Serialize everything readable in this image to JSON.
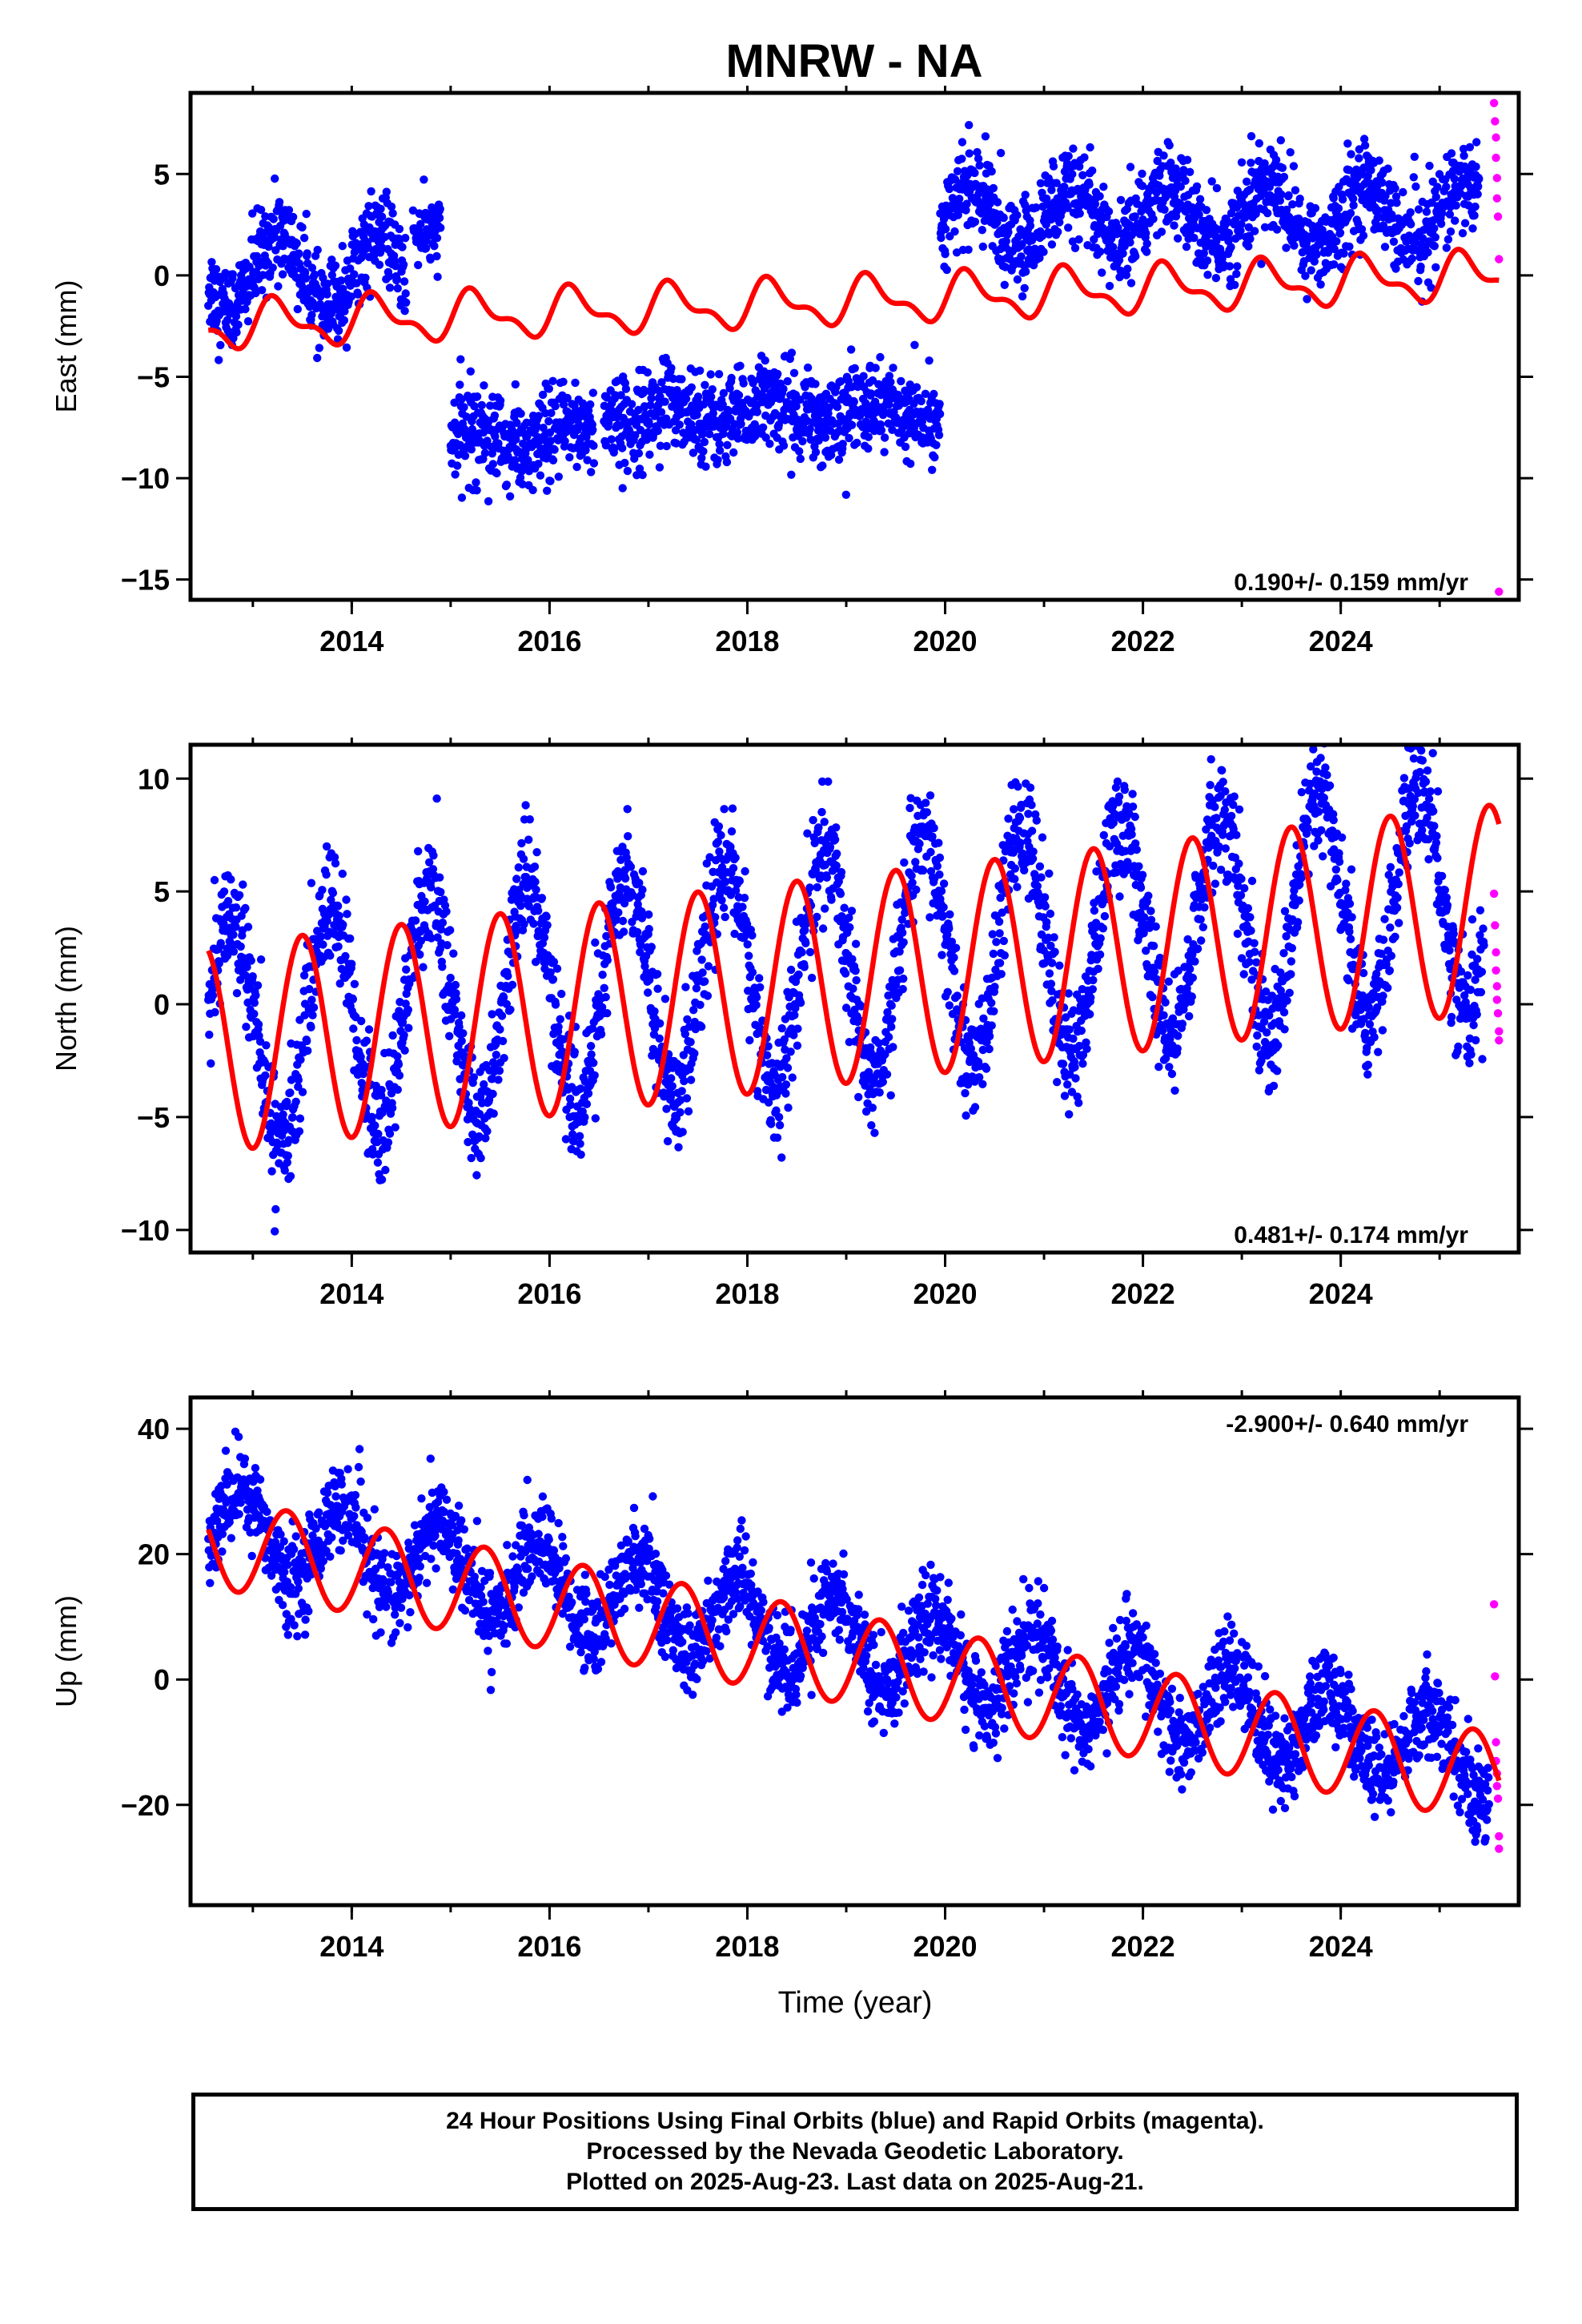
{
  "title": "MNRW - NA",
  "colors": {
    "final": "#0000ff",
    "rapid": "#ff00ff",
    "model": "#ff0000"
  },
  "xlabel": "Time (year)",
  "caption": {
    "line1": "24 Hour Positions Using Final Orbits (blue) and Rapid Orbits (magenta).",
    "line2": "Processed by the Nevada Geodetic Laboratory.",
    "line3": "Plotted on 2025-Aug-23. Last data on 2025-Aug-21."
  },
  "chart_data": [
    {
      "type": "scatter",
      "ylabel": "East (mm)",
      "rate_label": "0.190+/- 0.159 mm/yr",
      "rate_position": "bottom-right",
      "xlim": [
        2012.37,
        2025.8
      ],
      "ylim": [
        -16.0,
        9.0
      ],
      "xticks": [
        2014,
        2016,
        2018,
        2020,
        2022,
        2024
      ],
      "yticks": [
        -15,
        -10,
        -5,
        0,
        5
      ],
      "grid": false,
      "series": [
        {
          "kind": "dots",
          "color": "final",
          "segments": [
            {
              "from": 2012.55,
              "to": 2014.55,
              "c0": 0.2,
              "slope": 0.0,
              "amp": 1.8,
              "noise": 1.1
            },
            {
              "from": 2014.62,
              "to": 2014.9,
              "c0": 2.5,
              "slope": 0.0,
              "amp": 0.4,
              "noise": 0.8
            },
            {
              "from": 2015.0,
              "to": 2016.45,
              "c0": -8.2,
              "slope": 0.2,
              "amp": 0.6,
              "noise": 1.2
            },
            {
              "from": 2016.55,
              "to": 2019.95,
              "c0": -6.8,
              "slope": 0.05,
              "amp": 0.5,
              "noise": 1.1
            },
            {
              "from": 2019.95,
              "to": 2025.4,
              "c0": 2.8,
              "slope": 0.05,
              "amp": 1.4,
              "noise": 1.1
            }
          ]
        },
        {
          "kind": "dots",
          "color": "rapid",
          "points": [
            [
              2025.55,
              8.5
            ],
            [
              2025.56,
              7.6
            ],
            [
              2025.57,
              6.8
            ],
            [
              2025.57,
              5.8
            ],
            [
              2025.58,
              4.8
            ],
            [
              2025.58,
              3.8
            ],
            [
              2025.59,
              2.9
            ],
            [
              2025.6,
              0.8
            ],
            [
              2025.6,
              -15.6
            ]
          ]
        },
        {
          "kind": "model",
          "color": "model",
          "from": 2012.55,
          "to": 2025.6,
          "c0": -2.5,
          "slope": 0.19,
          "ref": 2012.55,
          "annual": [
            0.0,
            1.0
          ],
          "semi": [
            -0.2,
            0.45
          ]
        }
      ]
    },
    {
      "type": "scatter",
      "ylabel": "North (mm)",
      "rate_label": "0.481+/- 0.174 mm/yr",
      "rate_position": "bottom-right",
      "xlim": [
        2012.37,
        2025.8
      ],
      "ylim": [
        -11.0,
        11.5
      ],
      "xticks": [
        2014,
        2016,
        2018,
        2020,
        2022,
        2024
      ],
      "yticks": [
        -10,
        -5,
        0,
        5,
        10
      ],
      "grid": false,
      "series": [
        {
          "kind": "dots",
          "color": "final",
          "segments": [
            {
              "from": 2012.55,
              "to": 2025.45,
              "c0": -1.3,
              "slope": 0.48,
              "amp": 5.0,
              "noise": 1.3,
              "phase": 2.95
            }
          ]
        },
        {
          "kind": "dots",
          "color": "rapid",
          "points": [
            [
              2025.55,
              4.9
            ],
            [
              2025.56,
              3.5
            ],
            [
              2025.57,
              2.3
            ],
            [
              2025.57,
              1.5
            ],
            [
              2025.58,
              0.8
            ],
            [
              2025.58,
              0.2
            ],
            [
              2025.59,
              -0.4
            ],
            [
              2025.6,
              -1.2
            ],
            [
              2025.6,
              -1.6
            ]
          ]
        },
        {
          "kind": "model",
          "color": "model",
          "from": 2012.55,
          "to": 2025.6,
          "c0": -2.0,
          "slope": 0.48,
          "ref": 2012.55,
          "annual": [
            -4.6,
            0.0
          ],
          "semi": [
            0.0,
            0.0
          ]
        }
      ]
    },
    {
      "type": "scatter",
      "ylabel": "Up (mm)",
      "rate_label": "-2.900+/- 0.640 mm/yr",
      "rate_position": "top-right",
      "xlim": [
        2012.37,
        2025.8
      ],
      "ylim": [
        -36.0,
        45.0
      ],
      "xticks": [
        2014,
        2016,
        2018,
        2020,
        2022,
        2024
      ],
      "yticks": [
        -20,
        0,
        20,
        40
      ],
      "grid": false,
      "series": [
        {
          "kind": "dots",
          "color": "final",
          "segments": [
            {
              "from": 2012.55,
              "to": 2025.5,
              "c0": 25.0,
              "slope": -2.9,
              "amp": 6.5,
              "noise": 3.5,
              "phase": 2.2
            }
          ]
        },
        {
          "kind": "dots",
          "color": "rapid",
          "points": [
            [
              2025.55,
              12.0
            ],
            [
              2025.56,
              0.5
            ],
            [
              2025.57,
              -10.0
            ],
            [
              2025.57,
              -13.0
            ],
            [
              2025.58,
              -15.0
            ],
            [
              2025.58,
              -17.0
            ],
            [
              2025.59,
              -19.0
            ],
            [
              2025.6,
              -25.0
            ],
            [
              2025.6,
              -27.0
            ]
          ]
        },
        {
          "kind": "model",
          "color": "model",
          "from": 2012.55,
          "to": 2025.6,
          "c0": 22.0,
          "slope": -2.9,
          "ref": 2012.55,
          "annual": [
            -4.0,
            6.0
          ],
          "semi": [
            0.0,
            0.0
          ]
        }
      ]
    }
  ]
}
